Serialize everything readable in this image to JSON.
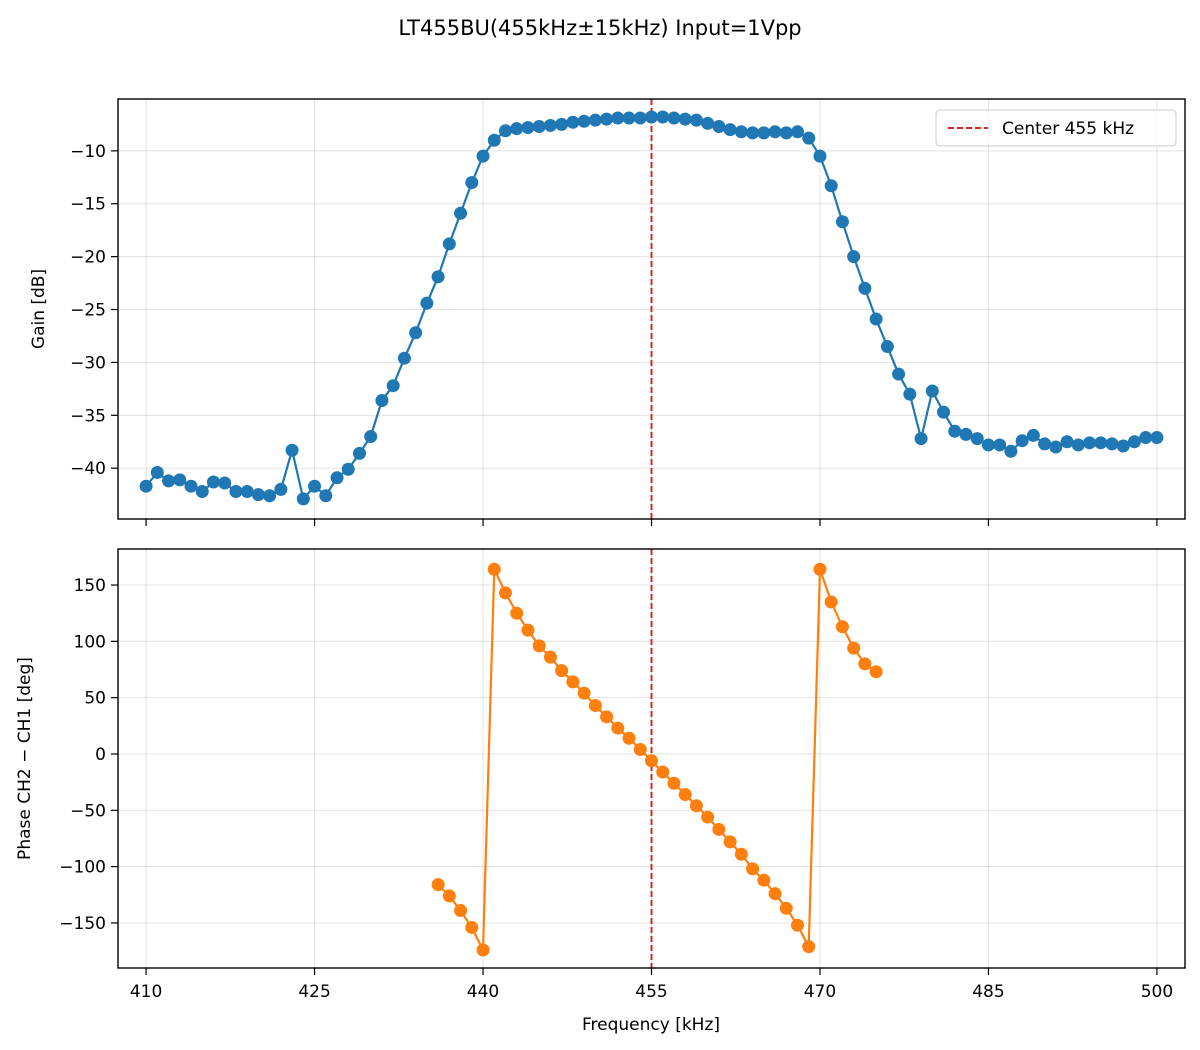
{
  "chart_data": {
    "title": "LT455BU(455kHz±15kHz) Input=1Vpp",
    "type": "line",
    "xlabel": "Frequency [kHz]",
    "xlim": [
      407.5,
      502.5
    ],
    "xticks": [
      410,
      425,
      440,
      455,
      470,
      485,
      500
    ],
    "center_line": {
      "x": 455,
      "label": "Center 455 kHz",
      "color": "#d62728",
      "style": "dashed"
    },
    "legend_position": "top-right",
    "grid": true,
    "panels": [
      {
        "ylabel": "Gain [dB]",
        "ylim": [
          -44.8,
          -5.1
        ],
        "yticks": [
          -10,
          -15,
          -20,
          -25,
          -30,
          -35,
          -40
        ],
        "ytick_labels": [
          "−10",
          "−15",
          "−20",
          "−25",
          "−30",
          "−35",
          "−40"
        ],
        "series": [
          {
            "color": "#1f77b4",
            "x": [
              410,
              411,
              412,
              413,
              414,
              415,
              416,
              417,
              418,
              419,
              420,
              421,
              422,
              423,
              424,
              425,
              426,
              427,
              428,
              429,
              430,
              431,
              432,
              433,
              434,
              435,
              436,
              437,
              438,
              439,
              440,
              441,
              442,
              443,
              444,
              445,
              446,
              447,
              448,
              449,
              450,
              451,
              452,
              453,
              454,
              455,
              456,
              457,
              458,
              459,
              460,
              461,
              462,
              463,
              464,
              465,
              466,
              467,
              468,
              469,
              470,
              471,
              472,
              473,
              474,
              475,
              476,
              477,
              478,
              479,
              480,
              481,
              482,
              483,
              484,
              485,
              486,
              487,
              488,
              489,
              490,
              491,
              492,
              493,
              494,
              495,
              496,
              497,
              498,
              499,
              500
            ],
            "y": [
              -41.7,
              -40.4,
              -41.2,
              -41.1,
              -41.7,
              -42.2,
              -41.3,
              -41.4,
              -42.2,
              -42.2,
              -42.5,
              -42.6,
              -42.0,
              -38.3,
              -42.9,
              -41.7,
              -42.6,
              -40.9,
              -40.1,
              -38.6,
              -37.0,
              -33.6,
              -32.2,
              -29.6,
              -27.2,
              -24.4,
              -21.9,
              -18.8,
              -15.9,
              -13.0,
              -10.5,
              -9.0,
              -8.1,
              -7.9,
              -7.8,
              -7.7,
              -7.6,
              -7.5,
              -7.3,
              -7.2,
              -7.1,
              -7.0,
              -6.9,
              -6.9,
              -6.9,
              -6.8,
              -6.8,
              -6.9,
              -7.0,
              -7.1,
              -7.4,
              -7.7,
              -8.0,
              -8.2,
              -8.3,
              -8.3,
              -8.2,
              -8.3,
              -8.2,
              -8.8,
              -10.5,
              -13.3,
              -16.7,
              -20.0,
              -23.0,
              -25.9,
              -28.5,
              -31.1,
              -33.0,
              -37.2,
              -32.7,
              -34.7,
              -36.5,
              -36.8,
              -37.2,
              -37.8,
              -37.8,
              -38.4,
              -37.4,
              -36.9,
              -37.7,
              -38.0,
              -37.5,
              -37.8,
              -37.6,
              -37.6,
              -37.7,
              -37.9,
              -37.5,
              -37.1,
              -37.1
            ]
          }
        ]
      },
      {
        "ylabel": "Phase CH2 − CH1 [deg]",
        "ylim": [
          -190,
          182
        ],
        "yticks": [
          150,
          100,
          50,
          0,
          -50,
          -100,
          -150
        ],
        "ytick_labels": [
          "150",
          "100",
          "50",
          "0",
          "−50",
          "−100",
          "−150"
        ],
        "series": [
          {
            "color": "#ff7f0e",
            "x": [
              436,
              437,
              438,
              439,
              440,
              441,
              442,
              443,
              444,
              445,
              446,
              447,
              448,
              449,
              450,
              451,
              452,
              453,
              454,
              455,
              456,
              457,
              458,
              459,
              460,
              461,
              462,
              463,
              464,
              465,
              466,
              467,
              468,
              469,
              470,
              471,
              472,
              473,
              474,
              475
            ],
            "y": [
              -116,
              -126,
              -139,
              -154,
              -174,
              164,
              143,
              125,
              110,
              96,
              86,
              74,
              64,
              54,
              43,
              33,
              23,
              14,
              4,
              -6,
              -16,
              -26,
              -36,
              -46,
              -56,
              -67,
              -78,
              -89,
              -102,
              -112,
              -124,
              -137,
              -152,
              -171,
              164,
              135,
              113,
              94,
              80,
              73
            ]
          }
        ]
      }
    ]
  }
}
